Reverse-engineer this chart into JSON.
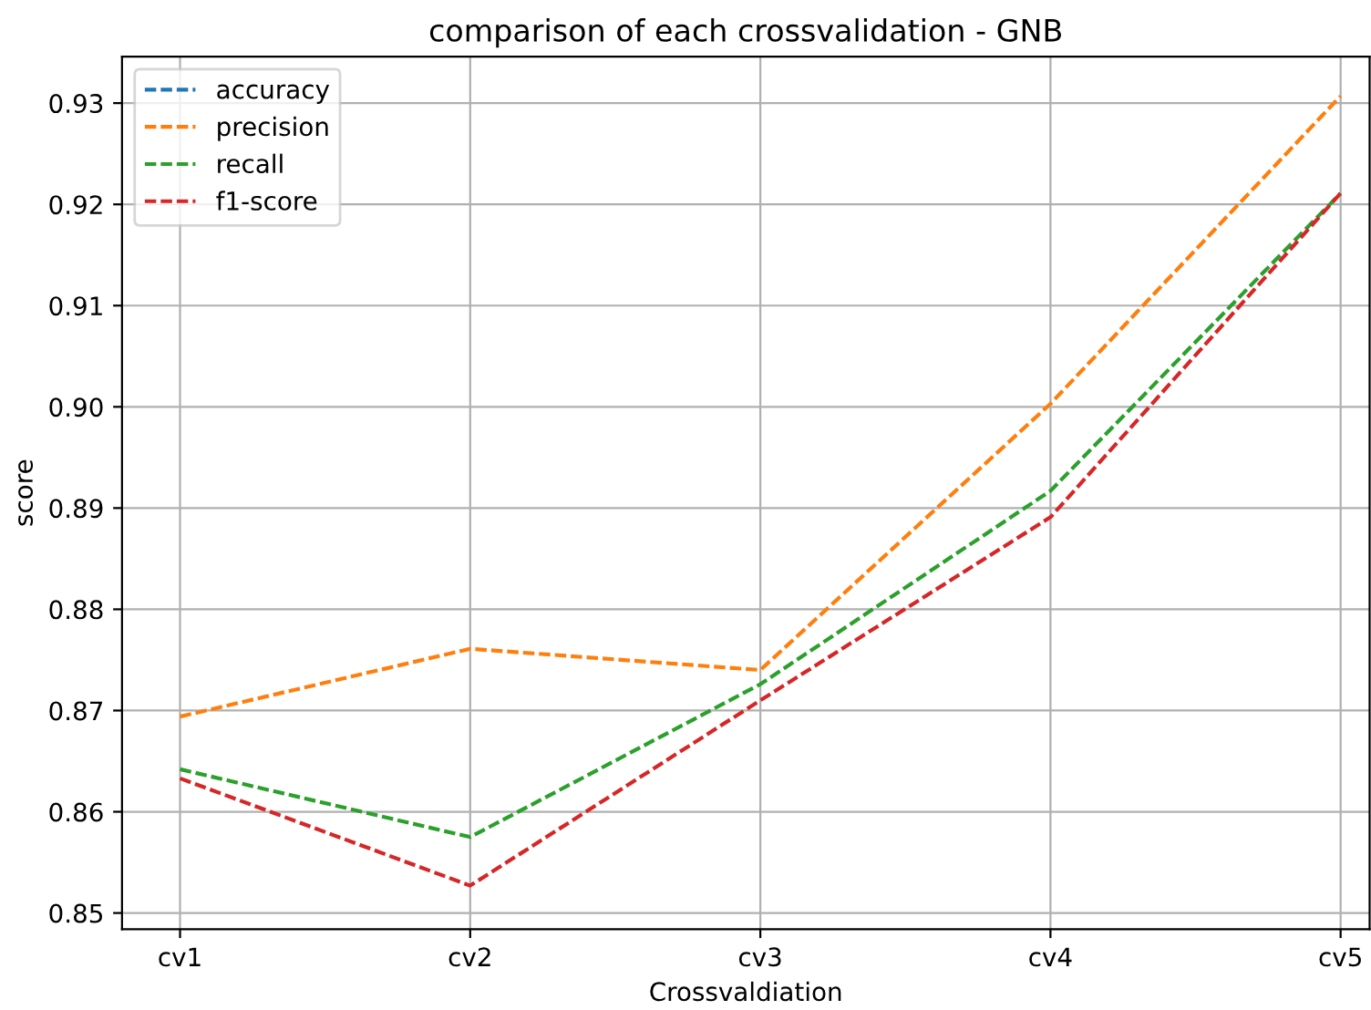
{
  "chart_data": {
    "type": "line",
    "title": "comparison of each crossvalidation - GNB",
    "xlabel": "Crossvaldiation",
    "ylabel": "score",
    "categories": [
      "cv1",
      "cv2",
      "cv3",
      "cv4",
      "cv5"
    ],
    "series": [
      {
        "name": "accuracy",
        "color": "#1f77b4",
        "values": [
          null,
          null,
          null,
          null,
          null
        ]
      },
      {
        "name": "precision",
        "color": "#ff7f0e",
        "values": [
          0.8694,
          0.8761,
          0.874,
          0.9003,
          0.9307
        ]
      },
      {
        "name": "recall",
        "color": "#2ca02c",
        "values": [
          0.8642,
          0.8575,
          0.8726,
          0.8917,
          0.9211
        ]
      },
      {
        "name": "f1-score",
        "color": "#d62728",
        "values": [
          0.8633,
          0.8527,
          0.871,
          0.8891,
          0.9211
        ]
      }
    ],
    "ylim": [
      0.8484,
      0.9346
    ],
    "yticks": [
      {
        "value": 0.85,
        "label": "0.85"
      },
      {
        "value": 0.86,
        "label": "0.86"
      },
      {
        "value": 0.87,
        "label": "0.87"
      },
      {
        "value": 0.88,
        "label": "0.88"
      },
      {
        "value": 0.89,
        "label": "0.89"
      },
      {
        "value": 0.9,
        "label": "0.90"
      },
      {
        "value": 0.91,
        "label": "0.91"
      },
      {
        "value": 0.92,
        "label": "0.92"
      },
      {
        "value": 0.93,
        "label": "0.93"
      }
    ],
    "grid": true,
    "legend": "top left",
    "line_style": "dashed",
    "marker": "none"
  }
}
